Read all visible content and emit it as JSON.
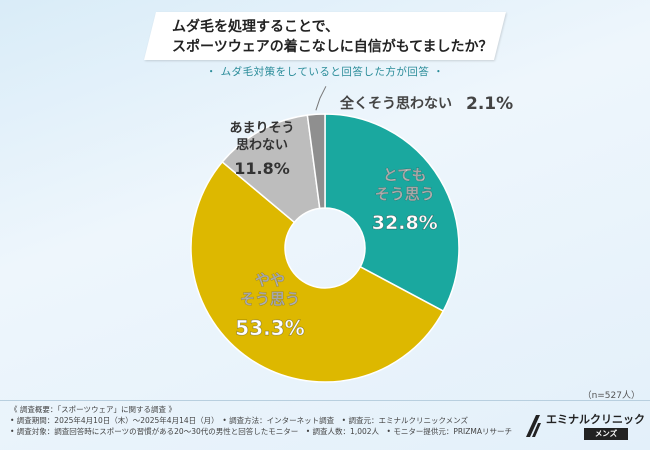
{
  "header": {
    "title_line1": "ムダ毛を処理することで、",
    "title_line2": "スポーツウェアの着こなしに自信がもてましたか？",
    "subtitle": "・ ムダ毛対策をしていると回答した方が回答 ・"
  },
  "chart_data": {
    "type": "pie",
    "variant": "donut",
    "start_angle_deg": 0,
    "direction": "clockwise",
    "slices": [
      {
        "label": "とてもそう思う",
        "label_lines": [
          "とても",
          "そう思う"
        ],
        "value": 32.8,
        "display": "32.8%",
        "color": "#1aa89f"
      },
      {
        "label": "ややそう思う",
        "label_lines": [
          "やや",
          "そう思う"
        ],
        "value": 53.3,
        "display": "53.3%",
        "color": "#ddb800"
      },
      {
        "label": "あまりそう思わない",
        "label_lines": [
          "あまりそう",
          "思わない"
        ],
        "value": 11.8,
        "display": "11.8%",
        "color": "#bdbdbd"
      },
      {
        "label": "全くそう思わない",
        "label_lines": [
          "全くそう思わない"
        ],
        "value": 2.1,
        "display": "2.1%",
        "color": "#8f8f8f"
      }
    ]
  },
  "sample": "（n=527人）",
  "footer": {
    "line1": "《 調査概要：「スポーツウェア」に関する調査 》",
    "line2": "• 調査期間：2025年4月10日（木）～2025年4月14日（月）　• 調査方法：インターネット調査　• 調査元：エミナルクリニックメンズ",
    "line3": "• 調査対象：調査回答時にスポーツの習慣がある20～30代の男性と回答したモニター　• 調査人数：1,002人　• モニター提供元：PRIZMAリサーチ"
  },
  "logo": {
    "name": "エミナルクリニック",
    "sub": "メンズ"
  }
}
